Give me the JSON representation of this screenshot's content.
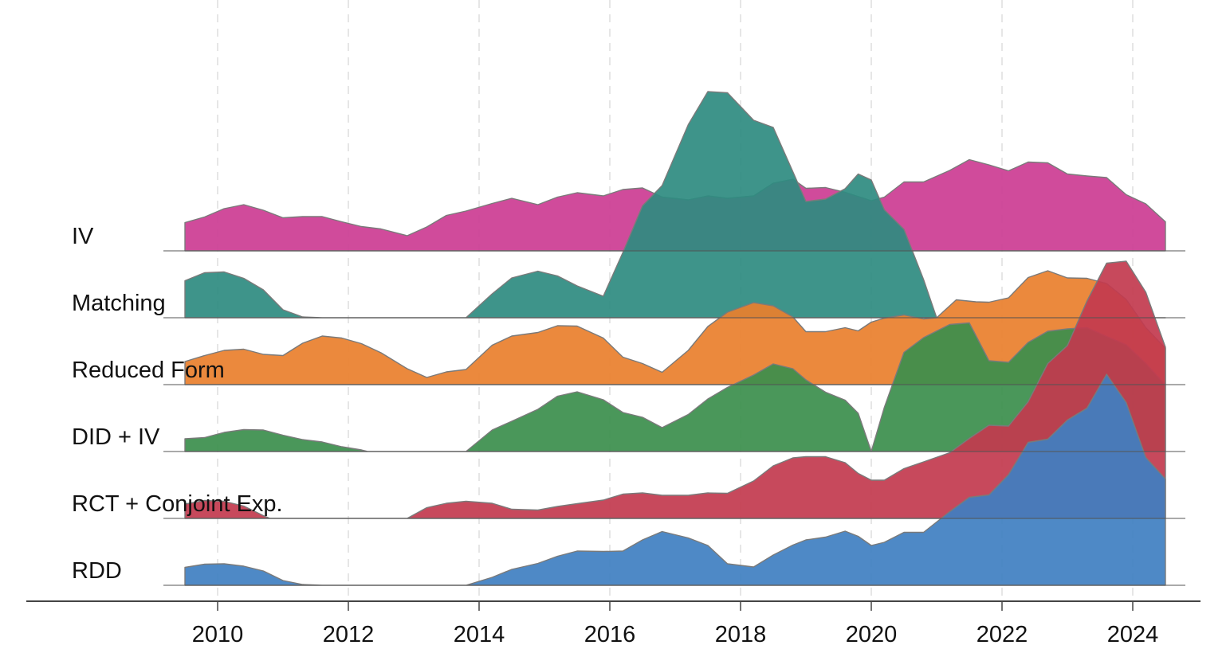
{
  "chart_data": {
    "type": "area",
    "subtype": "ridgeline",
    "title": "",
    "xlabel": "",
    "ylabel": "",
    "x_ticks": [
      "2010",
      "2012",
      "2014",
      "2016",
      "2018",
      "2020",
      "2022",
      "2024"
    ],
    "xlim": [
      2009.5,
      2024.5
    ],
    "grid": "dashed vertical gridlines at each x tick",
    "legend": "none (row labels on the left)",
    "series_order": [
      "IV",
      "Matching",
      "Reduced Form",
      "DID + IV",
      "RCT + Conjoint Exp.",
      "RDD"
    ],
    "series": [
      {
        "name": "IV",
        "color": "#CC3C93",
        "points": [
          [
            2009.5,
            0.71
          ],
          [
            2009.8,
            0.85
          ],
          [
            2010.1,
            1.06
          ],
          [
            2010.4,
            1.16
          ],
          [
            2010.7,
            1.02
          ],
          [
            2011.0,
            0.83
          ],
          [
            2011.3,
            0.86
          ],
          [
            2011.6,
            0.86
          ],
          [
            2011.9,
            0.73
          ],
          [
            2012.2,
            0.61
          ],
          [
            2012.5,
            0.55
          ],
          [
            2012.9,
            0.38
          ],
          [
            2013.2,
            0.6
          ],
          [
            2013.5,
            0.89
          ],
          [
            2013.8,
            1.0
          ],
          [
            2014.2,
            1.19
          ],
          [
            2014.5,
            1.32
          ],
          [
            2014.9,
            1.16
          ],
          [
            2015.2,
            1.35
          ],
          [
            2015.5,
            1.46
          ],
          [
            2015.9,
            1.38
          ],
          [
            2016.2,
            1.54
          ],
          [
            2016.5,
            1.58
          ],
          [
            2016.8,
            1.35
          ],
          [
            2017.2,
            1.28
          ],
          [
            2017.5,
            1.38
          ],
          [
            2017.8,
            1.32
          ],
          [
            2018.2,
            1.38
          ],
          [
            2018.5,
            1.7
          ],
          [
            2018.8,
            1.8
          ],
          [
            2019.0,
            1.57
          ],
          [
            2019.3,
            1.59
          ],
          [
            2019.6,
            1.47
          ],
          [
            2020.0,
            1.26
          ],
          [
            2020.2,
            1.35
          ],
          [
            2020.5,
            1.73
          ],
          [
            2020.8,
            1.73
          ],
          [
            2021.2,
            2.02
          ],
          [
            2021.5,
            2.29
          ],
          [
            2021.8,
            2.16
          ],
          [
            2022.1,
            2.01
          ],
          [
            2022.4,
            2.23
          ],
          [
            2022.7,
            2.21
          ],
          [
            2023.0,
            1.93
          ],
          [
            2023.3,
            1.88
          ],
          [
            2023.6,
            1.84
          ],
          [
            2023.9,
            1.41
          ],
          [
            2024.2,
            1.18
          ],
          [
            2024.5,
            0.73
          ]
        ]
      },
      {
        "name": "Matching",
        "color": "#2E8B80",
        "points": [
          [
            2009.5,
            0.93
          ],
          [
            2009.8,
            1.13
          ],
          [
            2010.1,
            1.15
          ],
          [
            2010.4,
            0.99
          ],
          [
            2010.7,
            0.7
          ],
          [
            2011.0,
            0.2
          ],
          [
            2011.3,
            0.02
          ],
          [
            2011.6,
            0
          ],
          [
            2013.8,
            0
          ],
          [
            2014.2,
            0.6
          ],
          [
            2014.5,
            1.0
          ],
          [
            2014.9,
            1.17
          ],
          [
            2015.2,
            1.05
          ],
          [
            2015.5,
            0.8
          ],
          [
            2015.9,
            0.54
          ],
          [
            2016.2,
            1.64
          ],
          [
            2016.5,
            2.81
          ],
          [
            2016.8,
            3.32
          ],
          [
            2017.2,
            4.85
          ],
          [
            2017.5,
            5.68
          ],
          [
            2017.8,
            5.65
          ],
          [
            2018.2,
            4.96
          ],
          [
            2018.5,
            4.78
          ],
          [
            2018.8,
            3.67
          ],
          [
            2019.0,
            2.92
          ],
          [
            2019.3,
            2.98
          ],
          [
            2019.6,
            3.24
          ],
          [
            2019.8,
            3.61
          ],
          [
            2020.0,
            3.46
          ],
          [
            2020.2,
            2.71
          ],
          [
            2020.5,
            2.22
          ],
          [
            2020.8,
            0.96
          ],
          [
            2021.0,
            0
          ],
          [
            2024.5,
            0
          ]
        ]
      },
      {
        "name": "Reduced Form",
        "color": "#E97F2C",
        "points": [
          [
            2009.5,
            0.58
          ],
          [
            2009.8,
            0.73
          ],
          [
            2010.1,
            0.86
          ],
          [
            2010.4,
            0.89
          ],
          [
            2010.7,
            0.76
          ],
          [
            2011.0,
            0.73
          ],
          [
            2011.3,
            1.04
          ],
          [
            2011.6,
            1.22
          ],
          [
            2011.9,
            1.17
          ],
          [
            2012.2,
            1.03
          ],
          [
            2012.5,
            0.8
          ],
          [
            2012.9,
            0.4
          ],
          [
            2013.2,
            0.18
          ],
          [
            2013.5,
            0.32
          ],
          [
            2013.8,
            0.38
          ],
          [
            2014.2,
            0.99
          ],
          [
            2014.5,
            1.22
          ],
          [
            2014.9,
            1.31
          ],
          [
            2015.2,
            1.48
          ],
          [
            2015.5,
            1.47
          ],
          [
            2015.9,
            1.17
          ],
          [
            2016.2,
            0.69
          ],
          [
            2016.5,
            0.53
          ],
          [
            2016.8,
            0.31
          ],
          [
            2017.2,
            0.86
          ],
          [
            2017.5,
            1.46
          ],
          [
            2017.8,
            1.82
          ],
          [
            2018.2,
            2.06
          ],
          [
            2018.5,
            1.98
          ],
          [
            2018.8,
            1.7
          ],
          [
            2019.0,
            1.33
          ],
          [
            2019.3,
            1.33
          ],
          [
            2019.6,
            1.43
          ],
          [
            2019.8,
            1.35
          ],
          [
            2020.0,
            1.57
          ],
          [
            2020.2,
            1.67
          ],
          [
            2020.5,
            1.75
          ],
          [
            2020.8,
            1.65
          ],
          [
            2021.0,
            1.68
          ],
          [
            2021.3,
            2.13
          ],
          [
            2021.6,
            2.08
          ],
          [
            2021.8,
            2.07
          ],
          [
            2022.1,
            2.18
          ],
          [
            2022.4,
            2.69
          ],
          [
            2022.7,
            2.86
          ],
          [
            2023.0,
            2.68
          ],
          [
            2023.3,
            2.67
          ],
          [
            2023.6,
            2.54
          ],
          [
            2023.9,
            2.14
          ],
          [
            2024.2,
            1.43
          ],
          [
            2024.5,
            0.91
          ]
        ]
      },
      {
        "name": "DID + IV",
        "color": "#3B8E4C",
        "points": [
          [
            2009.5,
            0.32
          ],
          [
            2009.8,
            0.35
          ],
          [
            2010.1,
            0.48
          ],
          [
            2010.4,
            0.55
          ],
          [
            2010.7,
            0.54
          ],
          [
            2011.0,
            0.41
          ],
          [
            2011.3,
            0.3
          ],
          [
            2011.6,
            0.24
          ],
          [
            2011.9,
            0.12
          ],
          [
            2012.2,
            0.04
          ],
          [
            2012.3,
            0
          ],
          [
            2013.8,
            0
          ],
          [
            2014.2,
            0.54
          ],
          [
            2014.5,
            0.76
          ],
          [
            2014.9,
            1.06
          ],
          [
            2015.2,
            1.39
          ],
          [
            2015.5,
            1.5
          ],
          [
            2015.9,
            1.3
          ],
          [
            2016.2,
            0.98
          ],
          [
            2016.5,
            0.86
          ],
          [
            2016.8,
            0.6
          ],
          [
            2017.2,
            0.93
          ],
          [
            2017.5,
            1.32
          ],
          [
            2017.8,
            1.61
          ],
          [
            2018.2,
            1.92
          ],
          [
            2018.5,
            2.2
          ],
          [
            2018.8,
            2.08
          ],
          [
            2019.0,
            1.8
          ],
          [
            2019.3,
            1.49
          ],
          [
            2019.6,
            1.29
          ],
          [
            2019.8,
            0.96
          ],
          [
            2020.0,
            0
          ],
          [
            2020.2,
            1.11
          ],
          [
            2020.5,
            2.49
          ],
          [
            2020.8,
            2.86
          ],
          [
            2021.2,
            3.19
          ],
          [
            2021.5,
            3.23
          ],
          [
            2021.8,
            2.28
          ],
          [
            2022.1,
            2.24
          ],
          [
            2022.4,
            2.74
          ],
          [
            2022.7,
            3.02
          ],
          [
            2023.0,
            3.08
          ],
          [
            2023.3,
            3.11
          ],
          [
            2023.6,
            2.89
          ],
          [
            2023.9,
            2.68
          ],
          [
            2024.2,
            2.21
          ],
          [
            2024.5,
            1.67
          ]
        ]
      },
      {
        "name": "RCT + Conjoint Exp.",
        "color": "#C23A4E",
        "points": [
          [
            2009.5,
            0.36
          ],
          [
            2009.8,
            0.45
          ],
          [
            2010.1,
            0.43
          ],
          [
            2010.4,
            0.31
          ],
          [
            2010.7,
            0.07
          ],
          [
            2010.8,
            0
          ],
          [
            2012.9,
            0
          ],
          [
            2013.2,
            0.27
          ],
          [
            2013.5,
            0.38
          ],
          [
            2013.8,
            0.43
          ],
          [
            2014.2,
            0.38
          ],
          [
            2014.5,
            0.23
          ],
          [
            2014.9,
            0.21
          ],
          [
            2015.2,
            0.3
          ],
          [
            2015.5,
            0.37
          ],
          [
            2015.9,
            0.46
          ],
          [
            2016.2,
            0.61
          ],
          [
            2016.5,
            0.64
          ],
          [
            2016.8,
            0.58
          ],
          [
            2017.2,
            0.58
          ],
          [
            2017.5,
            0.64
          ],
          [
            2017.8,
            0.63
          ],
          [
            2018.2,
            0.94
          ],
          [
            2018.5,
            1.32
          ],
          [
            2018.8,
            1.52
          ],
          [
            2019.0,
            1.55
          ],
          [
            2019.3,
            1.55
          ],
          [
            2019.6,
            1.4
          ],
          [
            2019.8,
            1.13
          ],
          [
            2020.0,
            0.96
          ],
          [
            2020.2,
            0.96
          ],
          [
            2020.5,
            1.25
          ],
          [
            2020.8,
            1.42
          ],
          [
            2021.2,
            1.65
          ],
          [
            2021.5,
            2.01
          ],
          [
            2021.8,
            2.34
          ],
          [
            2022.1,
            2.32
          ],
          [
            2022.4,
            2.93
          ],
          [
            2022.7,
            3.89
          ],
          [
            2023.0,
            4.34
          ],
          [
            2023.3,
            5.46
          ],
          [
            2023.6,
            6.41
          ],
          [
            2023.9,
            6.46
          ],
          [
            2024.2,
            5.68
          ],
          [
            2024.5,
            4.3
          ]
        ]
      },
      {
        "name": "RDD",
        "color": "#3F7FC1",
        "points": [
          [
            2009.5,
            0.45
          ],
          [
            2009.8,
            0.53
          ],
          [
            2010.1,
            0.54
          ],
          [
            2010.4,
            0.48
          ],
          [
            2010.7,
            0.36
          ],
          [
            2011.0,
            0.12
          ],
          [
            2011.3,
            0.02
          ],
          [
            2011.6,
            0
          ],
          [
            2013.8,
            0
          ],
          [
            2014.2,
            0.2
          ],
          [
            2014.5,
            0.4
          ],
          [
            2014.9,
            0.55
          ],
          [
            2015.2,
            0.73
          ],
          [
            2015.5,
            0.86
          ],
          [
            2015.9,
            0.85
          ],
          [
            2016.2,
            0.86
          ],
          [
            2016.5,
            1.14
          ],
          [
            2016.8,
            1.35
          ],
          [
            2017.2,
            1.19
          ],
          [
            2017.5,
            1.0
          ],
          [
            2017.8,
            0.54
          ],
          [
            2018.2,
            0.46
          ],
          [
            2018.5,
            0.76
          ],
          [
            2018.8,
            1.01
          ],
          [
            2019.0,
            1.14
          ],
          [
            2019.3,
            1.21
          ],
          [
            2019.6,
            1.36
          ],
          [
            2019.8,
            1.23
          ],
          [
            2020.0,
            1.0
          ],
          [
            2020.2,
            1.08
          ],
          [
            2020.5,
            1.33
          ],
          [
            2020.8,
            1.33
          ],
          [
            2021.2,
            1.85
          ],
          [
            2021.5,
            2.21
          ],
          [
            2021.8,
            2.27
          ],
          [
            2022.1,
            2.78
          ],
          [
            2022.4,
            3.59
          ],
          [
            2022.7,
            3.67
          ],
          [
            2023.0,
            4.15
          ],
          [
            2023.3,
            4.45
          ],
          [
            2023.6,
            5.3
          ],
          [
            2023.9,
            4.59
          ],
          [
            2024.2,
            3.21
          ],
          [
            2024.5,
            2.67
          ]
        ]
      }
    ]
  }
}
